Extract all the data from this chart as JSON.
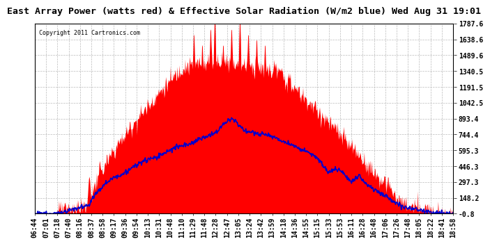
{
  "title": "East Array Power (watts red) & Effective Solar Radiation (W/m2 blue) Wed Aug 31 19:01",
  "copyright_text": "Copyright 2011 Cartronics.com",
  "y_right_ticks": [
    1787.6,
    1638.6,
    1489.6,
    1340.5,
    1191.5,
    1042.5,
    893.4,
    744.4,
    595.3,
    446.3,
    297.3,
    148.2,
    -0.8
  ],
  "x_tick_labels": [
    "06:44",
    "07:01",
    "07:18",
    "07:40",
    "08:16",
    "08:37",
    "08:58",
    "09:17",
    "09:36",
    "09:54",
    "10:13",
    "10:31",
    "10:48",
    "11:10",
    "11:29",
    "11:48",
    "12:28",
    "12:47",
    "13:05",
    "13:24",
    "13:42",
    "13:59",
    "14:18",
    "14:36",
    "14:55",
    "15:15",
    "15:33",
    "15:53",
    "16:11",
    "16:28",
    "16:48",
    "17:06",
    "17:26",
    "17:48",
    "18:05",
    "18:22",
    "18:41",
    "18:58"
  ],
  "bg_color": "#ffffff",
  "grid_color": "#bbbbbb",
  "fill_color": "#ff0000",
  "line_color": "#0000cc",
  "title_fontsize": 9.5,
  "tick_fontsize": 7,
  "ymin": -0.8,
  "ymax": 1787.6
}
